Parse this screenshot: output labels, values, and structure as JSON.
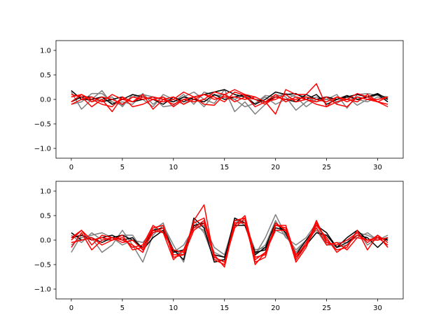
{
  "figure": {
    "background": "#ffffff",
    "line_colors": [
      "#000000",
      "#808080",
      "#ff0000"
    ]
  },
  "chart_data": [
    {
      "type": "line",
      "grid": false,
      "xlim": [
        -1.5,
        32.5
      ],
      "ylim": [
        -1.2,
        1.2
      ],
      "xticks": [
        0,
        5,
        10,
        15,
        20,
        25,
        30
      ],
      "xtick_labels": [
        "0",
        "5",
        "10",
        "15",
        "20",
        "25",
        "30"
      ],
      "yticks": [
        -1.0,
        -0.5,
        0.0,
        0.5,
        1.0
      ],
      "ytick_labels": [
        "−1.0",
        "−0.5",
        "0.0",
        "0.5",
        "1.0"
      ],
      "x": [
        0,
        1,
        2,
        3,
        4,
        5,
        6,
        7,
        8,
        9,
        10,
        11,
        12,
        13,
        14,
        15,
        16,
        17,
        18,
        19,
        20,
        21,
        22,
        23,
        24,
        25,
        26,
        27,
        28,
        29,
        30,
        31
      ],
      "series": [
        {
          "color": "#808080",
          "values": [
            -0.1,
            -0.05,
            0.12,
            0.12,
            -0.05,
            -0.12,
            0.05,
            0.1,
            0.05,
            -0.15,
            -0.12,
            0.05,
            0.15,
            0.0,
            -0.08,
            0.2,
            -0.25,
            -0.05,
            -0.3,
            -0.1,
            0.1,
            0.05,
            -0.22,
            -0.05,
            0.05,
            0.0,
            0.1,
            -0.18,
            0.1,
            0.12,
            0.08,
            0.05
          ]
        },
        {
          "color": "#808080",
          "values": [
            0.15,
            -0.2,
            0.0,
            0.18,
            -0.1,
            -0.05,
            -0.1,
            0.12,
            -0.1,
            0.05,
            -0.05,
            0.1,
            -0.1,
            0.15,
            0.08,
            0.1,
            0.0,
            -0.15,
            -0.08,
            0.08,
            0.05,
            0.12,
            0.05,
            -0.15,
            0.0,
            0.05,
            -0.05,
            0.05,
            -0.12,
            0.0,
            0.1,
            0.02
          ]
        },
        {
          "color": "#808080",
          "values": [
            -0.05,
            0.05,
            -0.05,
            0.0,
            0.05,
            -0.15,
            0.1,
            0.0,
            -0.15,
            0.1,
            0.0,
            -0.1,
            0.05,
            -0.15,
            0.1,
            0.05,
            0.0,
            0.1,
            -0.1,
            0.05,
            -0.1,
            0.0,
            0.1,
            0.05,
            -0.05,
            0.0,
            -0.08,
            0.05,
            0.0,
            -0.05,
            0.05,
            0.0
          ]
        },
        {
          "color": "#000000",
          "values": [
            0.18,
            0.0,
            0.0,
            0.05,
            -0.1,
            0.0,
            0.1,
            0.05,
            0.0,
            -0.1,
            0.05,
            -0.05,
            0.05,
            0.1,
            0.15,
            0.2,
            0.1,
            0.05,
            -0.1,
            0.0,
            0.15,
            0.1,
            0.12,
            0.0,
            0.1,
            -0.1,
            0.0,
            0.05,
            0.1,
            0.05,
            0.12,
            0.0
          ]
        },
        {
          "color": "#000000",
          "values": [
            -0.05,
            0.05,
            0.05,
            -0.05,
            0.0,
            0.05,
            -0.05,
            0.0,
            0.05,
            0.0,
            -0.05,
            0.05,
            0.0,
            -0.05,
            0.1,
            0.0,
            0.05,
            0.1,
            0.0,
            -0.05,
            0.05,
            0.0,
            -0.05,
            0.1,
            0.0,
            0.05,
            0.0,
            0.08,
            0.0,
            0.05,
            0.1,
            -0.05
          ]
        },
        {
          "color": "#ff0000",
          "values": [
            0.1,
            0.05,
            -0.15,
            0.0,
            -0.25,
            0.05,
            -0.15,
            -0.1,
            0.0,
            -0.05,
            0.0,
            0.15,
            0.05,
            -0.1,
            -0.12,
            0.1,
            0.2,
            0.1,
            0.05,
            -0.05,
            -0.3,
            0.2,
            0.1,
            0.1,
            0.32,
            -0.15,
            -0.05,
            0.0,
            0.12,
            0.05,
            -0.05,
            0.05
          ]
        },
        {
          "color": "#ff0000",
          "values": [
            -0.05,
            0.1,
            0.0,
            -0.1,
            -0.15,
            0.05,
            -0.05,
            0.1,
            -0.2,
            0.0,
            0.05,
            -0.1,
            0.0,
            0.1,
            0.05,
            -0.05,
            0.15,
            0.08,
            -0.15,
            -0.05,
            0.0,
            0.1,
            -0.05,
            0.0,
            -0.05,
            0.05,
            -0.1,
            -0.15,
            0.05,
            0.0,
            -0.05,
            -0.1
          ]
        },
        {
          "color": "#ff0000",
          "values": [
            0.05,
            0.1,
            -0.05,
            0.05,
            0.0,
            -0.1,
            0.05,
            0.0,
            0.05,
            0.0,
            -0.1,
            0.0,
            0.05,
            0.1,
            0.0,
            0.05,
            0.05,
            0.0,
            0.05,
            -0.05,
            0.1,
            -0.05,
            0.05,
            0.0,
            -0.1,
            -0.15,
            0.05,
            -0.05,
            0.05,
            0.0,
            0.0,
            0.05
          ]
        },
        {
          "color": "#ff0000",
          "values": [
            -0.1,
            0.0,
            0.05,
            -0.05,
            0.1,
            0.0,
            -0.05,
            0.05,
            0.0,
            0.05,
            -0.15,
            0.0,
            -0.05,
            0.0,
            0.15,
            0.1,
            -0.05,
            0.05,
            0.0,
            -0.1,
            0.05,
            0.0,
            0.0,
            0.05,
            0.0,
            -0.05,
            0.05,
            0.0,
            -0.05,
            0.1,
            -0.05,
            -0.15
          ]
        }
      ]
    },
    {
      "type": "line",
      "grid": false,
      "xlim": [
        -1.5,
        32.5
      ],
      "ylim": [
        -1.2,
        1.2
      ],
      "xticks": [
        0,
        5,
        10,
        15,
        20,
        25,
        30
      ],
      "xtick_labels": [
        "0",
        "5",
        "10",
        "15",
        "20",
        "25",
        "30"
      ],
      "yticks": [
        -1.0,
        -0.5,
        0.0,
        0.5,
        1.0
      ],
      "ytick_labels": [
        "−1.0",
        "−0.5",
        "0.0",
        "0.5",
        "1.0"
      ],
      "x": [
        0,
        1,
        2,
        3,
        4,
        5,
        6,
        7,
        8,
        9,
        10,
        11,
        12,
        13,
        14,
        15,
        16,
        17,
        18,
        19,
        20,
        21,
        22,
        23,
        24,
        25,
        26,
        27,
        28,
        29,
        30,
        31
      ],
      "series": [
        {
          "color": "#808080",
          "values": [
            -0.25,
            0.1,
            0.05,
            -0.25,
            -0.1,
            0.2,
            -0.1,
            -0.45,
            0.1,
            0.3,
            -0.1,
            -0.45,
            0.4,
            0.15,
            -0.4,
            -0.4,
            0.45,
            0.3,
            -0.3,
            0.05,
            0.52,
            0.1,
            -0.2,
            0.0,
            0.25,
            -0.05,
            -0.15,
            -0.1,
            0.2,
            -0.1,
            0.05,
            0.0
          ]
        },
        {
          "color": "#808080",
          "values": [
            0.1,
            -0.05,
            0.15,
            0.0,
            0.0,
            0.1,
            0.1,
            -0.2,
            0.15,
            0.2,
            -0.2,
            -0.3,
            0.3,
            0.2,
            -0.25,
            -0.35,
            0.35,
            0.4,
            -0.25,
            -0.1,
            0.4,
            0.05,
            -0.1,
            0.05,
            0.35,
            -0.1,
            -0.05,
            -0.05,
            0.15,
            0.1,
            0.0,
            0.1
          ]
        },
        {
          "color": "#808080",
          "values": [
            -0.1,
            0.05,
            0.1,
            0.15,
            0.05,
            -0.1,
            0.0,
            -0.05,
            0.2,
            0.35,
            -0.25,
            -0.1,
            0.25,
            0.3,
            -0.15,
            -0.3,
            0.4,
            0.35,
            -0.2,
            -0.15,
            0.2,
            0.1,
            -0.25,
            0.0,
            0.2,
            -0.1,
            -0.1,
            0.0,
            0.05,
            0.15,
            0.0,
            0.05
          ]
        },
        {
          "color": "#000000",
          "values": [
            0.15,
            0.0,
            0.05,
            -0.05,
            0.05,
            0.1,
            0.0,
            -0.15,
            0.2,
            0.25,
            -0.2,
            -0.4,
            0.45,
            0.25,
            -0.45,
            -0.4,
            0.45,
            0.35,
            -0.3,
            -0.15,
            0.35,
            0.15,
            -0.3,
            0.0,
            0.3,
            0.15,
            -0.15,
            -0.05,
            0.1,
            0.05,
            -0.15,
            0.05
          ]
        },
        {
          "color": "#000000",
          "values": [
            0.05,
            0.1,
            0.0,
            0.05,
            0.1,
            0.0,
            0.05,
            -0.2,
            0.05,
            0.2,
            -0.25,
            -0.2,
            0.3,
            0.35,
            -0.3,
            -0.35,
            0.3,
            0.3,
            -0.25,
            -0.2,
            0.25,
            0.2,
            -0.35,
            -0.1,
            0.15,
            0.1,
            -0.15,
            0.05,
            0.2,
            0.0,
            0.05,
            0.0
          ]
        },
        {
          "color": "#ff0000",
          "values": [
            0.0,
            0.2,
            0.0,
            0.05,
            0.0,
            0.1,
            -0.2,
            -0.15,
            0.25,
            0.3,
            -0.35,
            -0.3,
            0.4,
            0.72,
            -0.4,
            -0.5,
            0.4,
            0.45,
            -0.45,
            -0.35,
            0.35,
            0.2,
            -0.4,
            -0.1,
            0.4,
            -0.05,
            -0.1,
            0.0,
            0.15,
            -0.05,
            0.1,
            -0.15
          ]
        },
        {
          "color": "#ff0000",
          "values": [
            -0.15,
            0.15,
            -0.2,
            0.0,
            0.05,
            -0.05,
            0.0,
            -0.2,
            0.15,
            0.25,
            -0.3,
            -0.3,
            0.2,
            0.35,
            -0.35,
            -0.45,
            0.3,
            0.5,
            -0.35,
            -0.3,
            0.3,
            0.25,
            -0.45,
            -0.15,
            0.35,
            0.0,
            -0.2,
            -0.15,
            0.2,
            -0.2,
            0.1,
            -0.05
          ]
        },
        {
          "color": "#ff0000",
          "values": [
            0.05,
            0.2,
            -0.1,
            0.1,
            0.05,
            0.0,
            -0.1,
            -0.25,
            0.2,
            0.15,
            -0.2,
            -0.25,
            0.35,
            0.45,
            -0.3,
            -0.55,
            0.35,
            0.35,
            -0.4,
            -0.25,
            0.3,
            0.3,
            -0.35,
            -0.05,
            0.3,
            0.05,
            -0.25,
            -0.1,
            0.1,
            0.0,
            0.0,
            0.05
          ]
        },
        {
          "color": "#ff0000",
          "values": [
            -0.05,
            0.0,
            0.05,
            -0.1,
            0.0,
            0.05,
            -0.15,
            -0.1,
            0.3,
            0.15,
            -0.4,
            -0.2,
            0.25,
            0.4,
            -0.35,
            -0.45,
            0.25,
            0.45,
            -0.5,
            -0.25,
            0.2,
            0.2,
            -0.3,
            -0.1,
            0.25,
            -0.1,
            -0.05,
            -0.2,
            0.05,
            0.0,
            0.05,
            -0.1
          ]
        }
      ]
    }
  ]
}
